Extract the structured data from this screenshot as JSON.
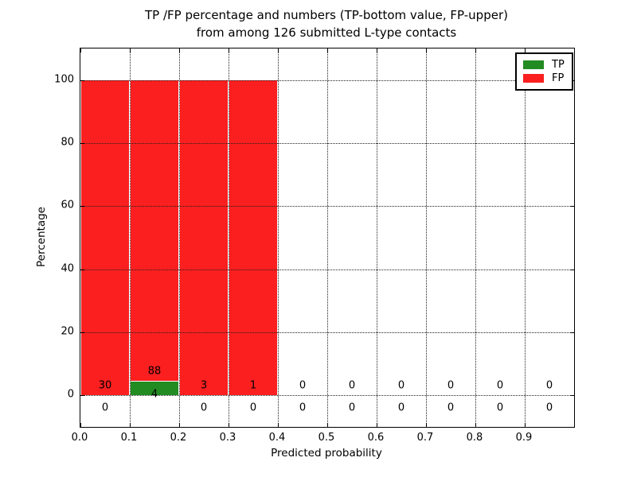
{
  "title": {
    "line1": "TP /FP percentage and numbers (TP-bottom value, FP-upper)",
    "line2": "from among 126 submitted L-type contacts"
  },
  "chart_data": {
    "type": "bar",
    "stacked": true,
    "title": "TP /FP percentage and numbers (TP-bottom value, FP-upper)\nfrom among 126 submitted L-type contacts",
    "subtitle_note": "TP-bottom value, FP-upper",
    "total_contacts": 126,
    "xlabel": "Predicted probability",
    "ylabel": "Percentage",
    "xlim": [
      0.0,
      1.0
    ],
    "ylim": [
      -10,
      110
    ],
    "xtick_values": [
      0.0,
      0.1,
      0.2,
      0.3,
      0.4,
      0.5,
      0.6,
      0.7,
      0.8,
      0.9
    ],
    "xtick_labels": [
      "0.0",
      "0.1",
      "0.2",
      "0.3",
      "0.4",
      "0.5",
      "0.6",
      "0.7",
      "0.8",
      "0.9"
    ],
    "ytick_values": [
      0,
      20,
      40,
      60,
      80,
      100
    ],
    "ytick_labels": [
      "0",
      "20",
      "40",
      "60",
      "80",
      "100"
    ],
    "grid": true,
    "bin_width": 0.1,
    "bin_starts": [
      0.0,
      0.1,
      0.2,
      0.3,
      0.4,
      0.5,
      0.6,
      0.7,
      0.8,
      0.9
    ],
    "series": [
      {
        "name": "TP",
        "color": "#228b22",
        "counts": [
          0,
          4,
          0,
          0,
          0,
          0,
          0,
          0,
          0,
          0
        ],
        "percent": [
          0,
          4.35,
          0,
          0,
          0,
          0,
          0,
          0,
          0,
          0
        ]
      },
      {
        "name": "FP",
        "color": "#fb1f1f",
        "counts": [
          30,
          88,
          3,
          1,
          0,
          0,
          0,
          0,
          0,
          0
        ],
        "percent": [
          100,
          95.65,
          100,
          100,
          0,
          0,
          0,
          0,
          0,
          0
        ]
      }
    ],
    "legend": {
      "position": "upper right",
      "entries": [
        {
          "label": "TP",
          "color": "#228b22"
        },
        {
          "label": "FP",
          "color": "#fb1f1f"
        }
      ]
    }
  }
}
